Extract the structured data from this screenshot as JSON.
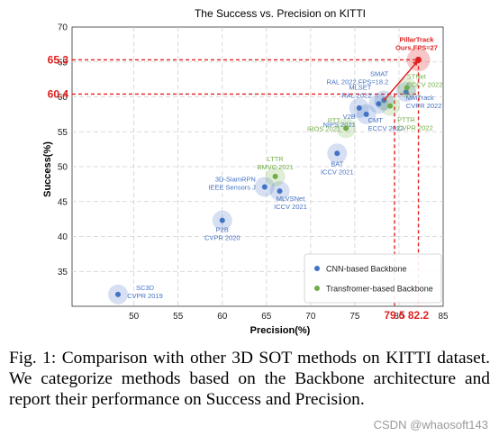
{
  "chart_data": {
    "type": "scatter",
    "title": "The Success vs. Precision on KITTI",
    "xlabel": "Precision(%)",
    "ylabel": "Success(%)",
    "xlim": [
      43,
      85
    ],
    "ylim": [
      30,
      70
    ],
    "xticks": [
      50,
      55,
      60,
      65,
      70,
      75,
      80,
      85
    ],
    "yticks": [
      35,
      40,
      45,
      50,
      55,
      60,
      65,
      70
    ],
    "grid": true,
    "legend_position": "bottom-right",
    "series": [
      {
        "name": "CNN-based Backbone",
        "color": "#4472c4",
        "points": [
          {
            "x": 48.2,
            "y": 31.7,
            "label": [
              "SC3D",
              "CVPR 2019"
            ]
          },
          {
            "x": 60.0,
            "y": 42.3,
            "label": [
              "P2B",
              "CVPR 2020"
            ]
          },
          {
            "x": 64.8,
            "y": 47.1,
            "label": [
              "3D-SiamRPN",
              "IEEE Sensors J"
            ]
          },
          {
            "x": 66.5,
            "y": 46.5,
            "label": [
              "MLVSNet",
              "ICCV 2021"
            ]
          },
          {
            "x": 73.0,
            "y": 51.9,
            "label": [
              "BAT",
              "ICCV 2021"
            ]
          },
          {
            "x": 75.5,
            "y": 58.4,
            "label": [
              "V2B",
              "NIPS 2021"
            ]
          },
          {
            "x": 76.3,
            "y": 57.5,
            "label": [
              "CMT",
              "ECCV 2022"
            ]
          },
          {
            "x": 77.7,
            "y": 59.0,
            "label": [
              "MLSET",
              "RAL 2022"
            ]
          },
          {
            "x": 78.3,
            "y": 59.5,
            "label": [
              "SMAT",
              "RAL 2022,FPS=18.2"
            ]
          },
          {
            "x": 80.8,
            "y": 60.7,
            "label": [
              "MMTrack",
              "CVPR 2022"
            ]
          }
        ]
      },
      {
        "name": "Transfromer-based Backbone",
        "color": "#70ad47",
        "points": [
          {
            "x": 66.0,
            "y": 48.6,
            "label": [
              "LTTR",
              "BMVC 2021"
            ]
          },
          {
            "x": 74.0,
            "y": 55.5,
            "label": [
              "PTT",
              "IROS 2021"
            ]
          },
          {
            "x": 79.0,
            "y": 58.7,
            "label": [
              "PTTR",
              "CVPR 2022"
            ]
          },
          {
            "x": 80.9,
            "y": 61.3,
            "label": [
              "STNet",
              "ECCV 2022"
            ]
          }
        ]
      }
    ],
    "highlight": {
      "x": 82.2,
      "y": 65.3,
      "label": [
        "PillarTrack",
        "Ours,FPS=27"
      ],
      "color": "#e02020"
    },
    "reference_lines": [
      {
        "axis": "y",
        "value": 65.3,
        "label": "65.3"
      },
      {
        "axis": "y",
        "value": 60.4,
        "label": "60.4"
      },
      {
        "axis": "x",
        "value": 79.5,
        "label": "79.5"
      },
      {
        "axis": "x",
        "value": 82.2,
        "label": "82.2"
      }
    ],
    "arrow": {
      "from": [
        78.3,
        59.5
      ],
      "to": [
        82.2,
        65.3
      ]
    }
  },
  "caption": "Fig. 1: Comparison with other 3D SOT methods on KITTI dataset. We categorize methods based on the Backbone architecture and report their performance on Success and Precision.",
  "watermark": "CSDN @whaosoft143"
}
